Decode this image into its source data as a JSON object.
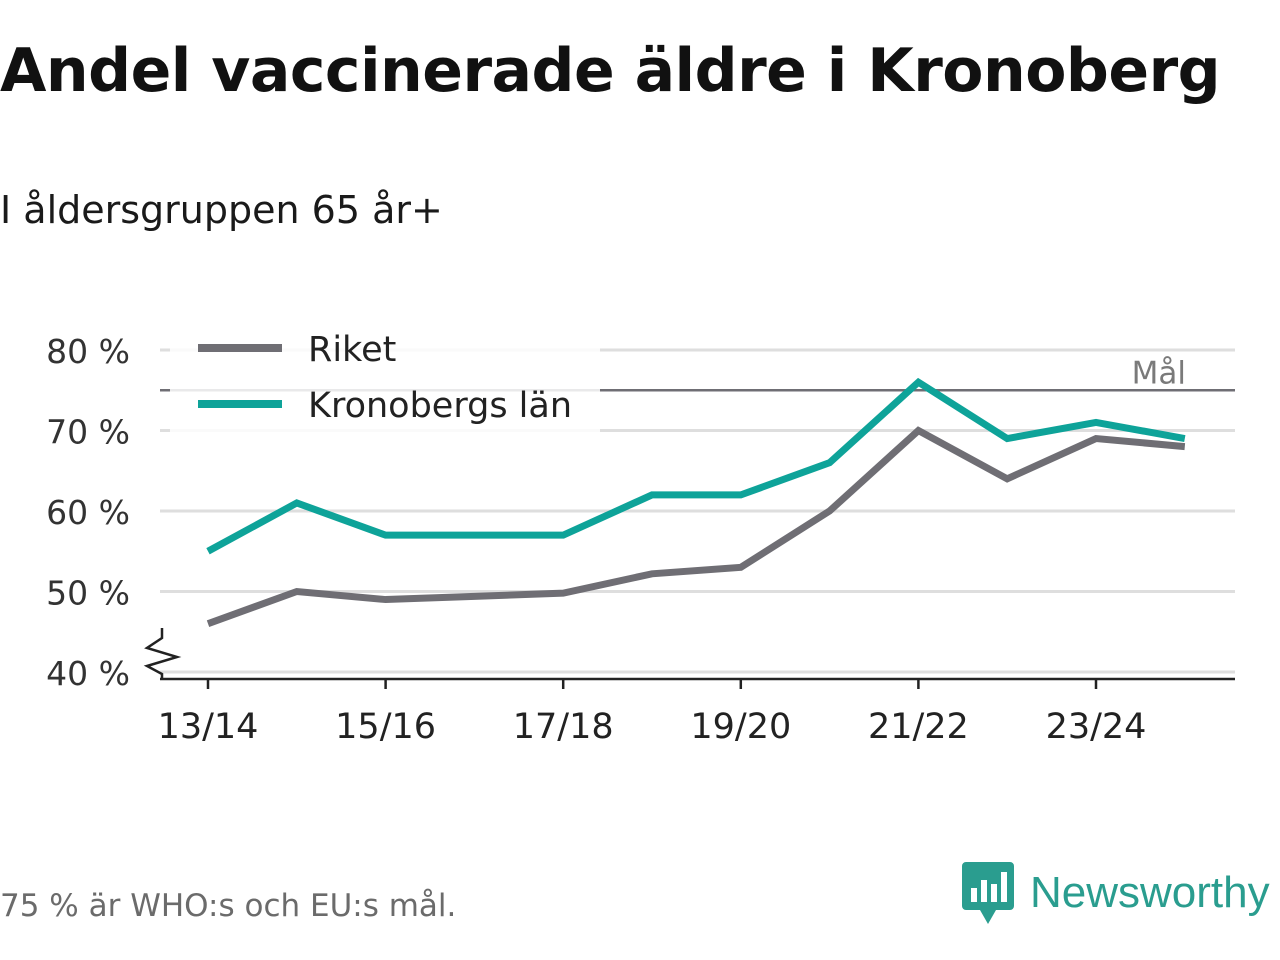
{
  "title": "Andel vaccinerade äldre i Kronoberg",
  "subtitle": "I åldersgruppen 65 år+",
  "footnote": "75 % är WHO:s och EU:s mål.",
  "brand": "Newsworthy",
  "colors": {
    "riket": "#6f6e74",
    "kronoberg": "#0ea399",
    "grid": "#dedede",
    "target": "#6f6e74",
    "brand": "#2a9d8f"
  },
  "chart_data": {
    "type": "line",
    "x": [
      "13/14",
      "14/15",
      "15/16",
      "16/17",
      "17/18",
      "18/19",
      "19/20",
      "20/21",
      "21/22",
      "22/23",
      "23/24",
      "24/25"
    ],
    "tick_labels": [
      "13/14",
      "15/16",
      "17/18",
      "19/20",
      "21/22",
      "23/24"
    ],
    "ylim": [
      40,
      80
    ],
    "yticks": [
      40,
      50,
      60,
      70,
      80
    ],
    "ytick_labels": [
      "40 %",
      "50 %",
      "60 %",
      "70 %",
      "80 %"
    ],
    "y_axis_break": true,
    "series": [
      {
        "name": "Riket",
        "color": "#6f6e74",
        "values": [
          46,
          50,
          49,
          49.4,
          49.8,
          52.2,
          53,
          60,
          70,
          64,
          69,
          68
        ]
      },
      {
        "name": "Kronobergs län",
        "color": "#0ea399",
        "values": [
          55,
          61,
          57,
          57,
          57,
          62,
          62,
          66,
          76,
          69,
          71,
          69
        ]
      }
    ],
    "target": {
      "value": 75,
      "label": "Mål"
    },
    "legend_position": "top-left"
  }
}
